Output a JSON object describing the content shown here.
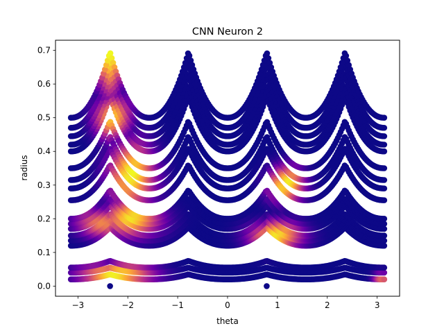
{
  "chart_data": {
    "type": "scatter",
    "title": "CNN Neuron 2",
    "xlabel": "theta",
    "ylabel": "radius",
    "xlim": [
      -3.45,
      3.45
    ],
    "ylim": [
      -0.03,
      0.73
    ],
    "x_ticks": [
      -3,
      -2,
      -1,
      0,
      1,
      2,
      3
    ],
    "x_tick_labels": [
      "−3",
      "−2",
      "−1",
      "0",
      "1",
      "2",
      "3"
    ],
    "y_ticks": [
      0.0,
      0.1,
      0.2,
      0.3,
      0.4,
      0.5,
      0.6,
      0.7
    ],
    "y_tick_labels": [
      "0.0",
      "0.1",
      "0.2",
      "0.3",
      "0.4",
      "0.5",
      "0.6",
      "0.7"
    ],
    "grid": false,
    "colormap": "plasma",
    "colormap_stops": [
      "#0d0887",
      "#6a00a8",
      "#b12a90",
      "#e16462",
      "#fca636",
      "#f0f921"
    ],
    "bands": [
      {
        "base": 0.02,
        "peak": 0.035
      },
      {
        "base": 0.04,
        "peak": 0.055
      },
      {
        "base": 0.055,
        "peak": 0.075
      },
      {
        "base": 0.12,
        "peak": 0.175
      },
      {
        "base": 0.135,
        "peak": 0.195
      },
      {
        "base": 0.15,
        "peak": 0.215
      },
      {
        "base": 0.17,
        "peak": 0.24
      },
      {
        "base": 0.185,
        "peak": 0.26
      },
      {
        "base": 0.2,
        "peak": 0.285
      },
      {
        "base": 0.255,
        "peak": 0.36
      },
      {
        "base": 0.29,
        "peak": 0.41
      },
      {
        "base": 0.315,
        "peak": 0.445
      },
      {
        "base": 0.35,
        "peak": 0.49
      },
      {
        "base": 0.4,
        "peak": 0.565
      },
      {
        "base": 0.42,
        "peak": 0.595
      },
      {
        "base": 0.445,
        "peak": 0.63
      },
      {
        "base": 0.47,
        "peak": 0.665
      },
      {
        "base": 0.5,
        "peak": 0.695
      }
    ],
    "peaks_at_theta": [
      -2.356,
      -0.785,
      0.785,
      2.356
    ],
    "hotspots": [
      {
        "theta": -2.356,
        "r": 0.69,
        "spread_theta": 0.25,
        "spread_r": 0.12,
        "weight": 1.0
      },
      {
        "theta": -1.9,
        "r": 0.33,
        "spread_theta": 0.45,
        "spread_r": 0.09,
        "weight": 1.0
      },
      {
        "theta": -2.3,
        "r": 0.5,
        "spread_theta": 0.35,
        "spread_r": 0.06,
        "weight": 0.9
      },
      {
        "theta": -1.9,
        "r": 0.2,
        "spread_theta": 0.55,
        "spread_r": 0.05,
        "weight": 0.95
      },
      {
        "theta": -2.5,
        "r": 0.19,
        "spread_theta": 0.5,
        "spread_r": 0.04,
        "weight": 0.7
      },
      {
        "theta": -2.2,
        "r": 0.035,
        "spread_theta": 0.7,
        "spread_r": 0.03,
        "weight": 1.0
      },
      {
        "theta": 1.2,
        "r": 0.3,
        "spread_theta": 0.35,
        "spread_r": 0.05,
        "weight": 1.0
      },
      {
        "theta": 1.0,
        "r": 0.15,
        "spread_theta": 0.5,
        "spread_r": 0.04,
        "weight": 0.95
      },
      {
        "theta": 3.1,
        "r": 0.02,
        "spread_theta": 0.15,
        "spread_r": 0.02,
        "weight": 0.6
      }
    ],
    "isolated_points": [
      {
        "theta": -2.356,
        "r": 0.0
      },
      {
        "theta": 0.785,
        "r": 0.0
      }
    ]
  }
}
